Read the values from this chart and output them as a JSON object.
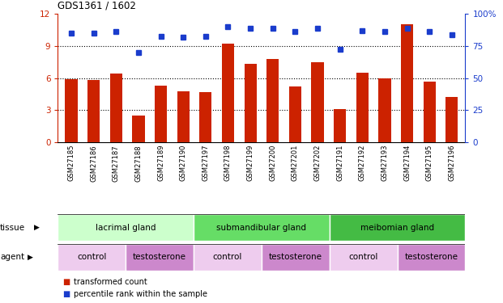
{
  "title": "GDS1361 / 1602",
  "samples": [
    "GSM27185",
    "GSM27186",
    "GSM27187",
    "GSM27188",
    "GSM27189",
    "GSM27190",
    "GSM27197",
    "GSM27198",
    "GSM27199",
    "GSM27200",
    "GSM27201",
    "GSM27202",
    "GSM27191",
    "GSM27192",
    "GSM27193",
    "GSM27194",
    "GSM27195",
    "GSM27196"
  ],
  "bar_values": [
    5.9,
    5.8,
    6.4,
    2.5,
    5.3,
    4.8,
    4.7,
    9.2,
    7.3,
    7.8,
    5.2,
    7.5,
    3.1,
    6.5,
    6.0,
    11.0,
    5.7,
    4.2
  ],
  "dot_values": [
    85.0,
    85.0,
    86.0,
    70.0,
    82.5,
    81.5,
    82.5,
    90.0,
    88.5,
    88.5,
    86.0,
    88.5,
    72.5,
    87.0,
    86.0,
    88.5,
    86.0,
    83.5
  ],
  "bar_color": "#cc2200",
  "dot_color": "#1a3ccc",
  "ylim_left": [
    0,
    12
  ],
  "ylim_right": [
    0,
    100
  ],
  "yticks_left": [
    0,
    3,
    6,
    9,
    12
  ],
  "yticks_right": [
    0,
    25,
    50,
    75,
    100
  ],
  "ytick_labels_right": [
    "0",
    "25",
    "50",
    "75",
    "100%"
  ],
  "hlines": [
    3,
    6,
    9
  ],
  "tissue_groups": [
    {
      "label": "lacrimal gland",
      "start": 0,
      "end": 6,
      "color": "#ccffcc"
    },
    {
      "label": "submandibular gland",
      "start": 6,
      "end": 12,
      "color": "#66dd66"
    },
    {
      "label": "meibomian gland",
      "start": 12,
      "end": 18,
      "color": "#44bb44"
    }
  ],
  "agent_groups": [
    {
      "label": "control",
      "start": 0,
      "end": 3,
      "color": "#eeccee"
    },
    {
      "label": "testosterone",
      "start": 3,
      "end": 6,
      "color": "#cc88cc"
    },
    {
      "label": "control",
      "start": 6,
      "end": 9,
      "color": "#eeccee"
    },
    {
      "label": "testosterone",
      "start": 9,
      "end": 12,
      "color": "#cc88cc"
    },
    {
      "label": "control",
      "start": 12,
      "end": 15,
      "color": "#eeccee"
    },
    {
      "label": "testosterone",
      "start": 15,
      "end": 18,
      "color": "#cc88cc"
    }
  ],
  "legend_bar_label": "transformed count",
  "legend_dot_label": "percentile rank within the sample",
  "tissue_label": "tissue",
  "agent_label": "agent",
  "xtick_bg": "#cccccc"
}
